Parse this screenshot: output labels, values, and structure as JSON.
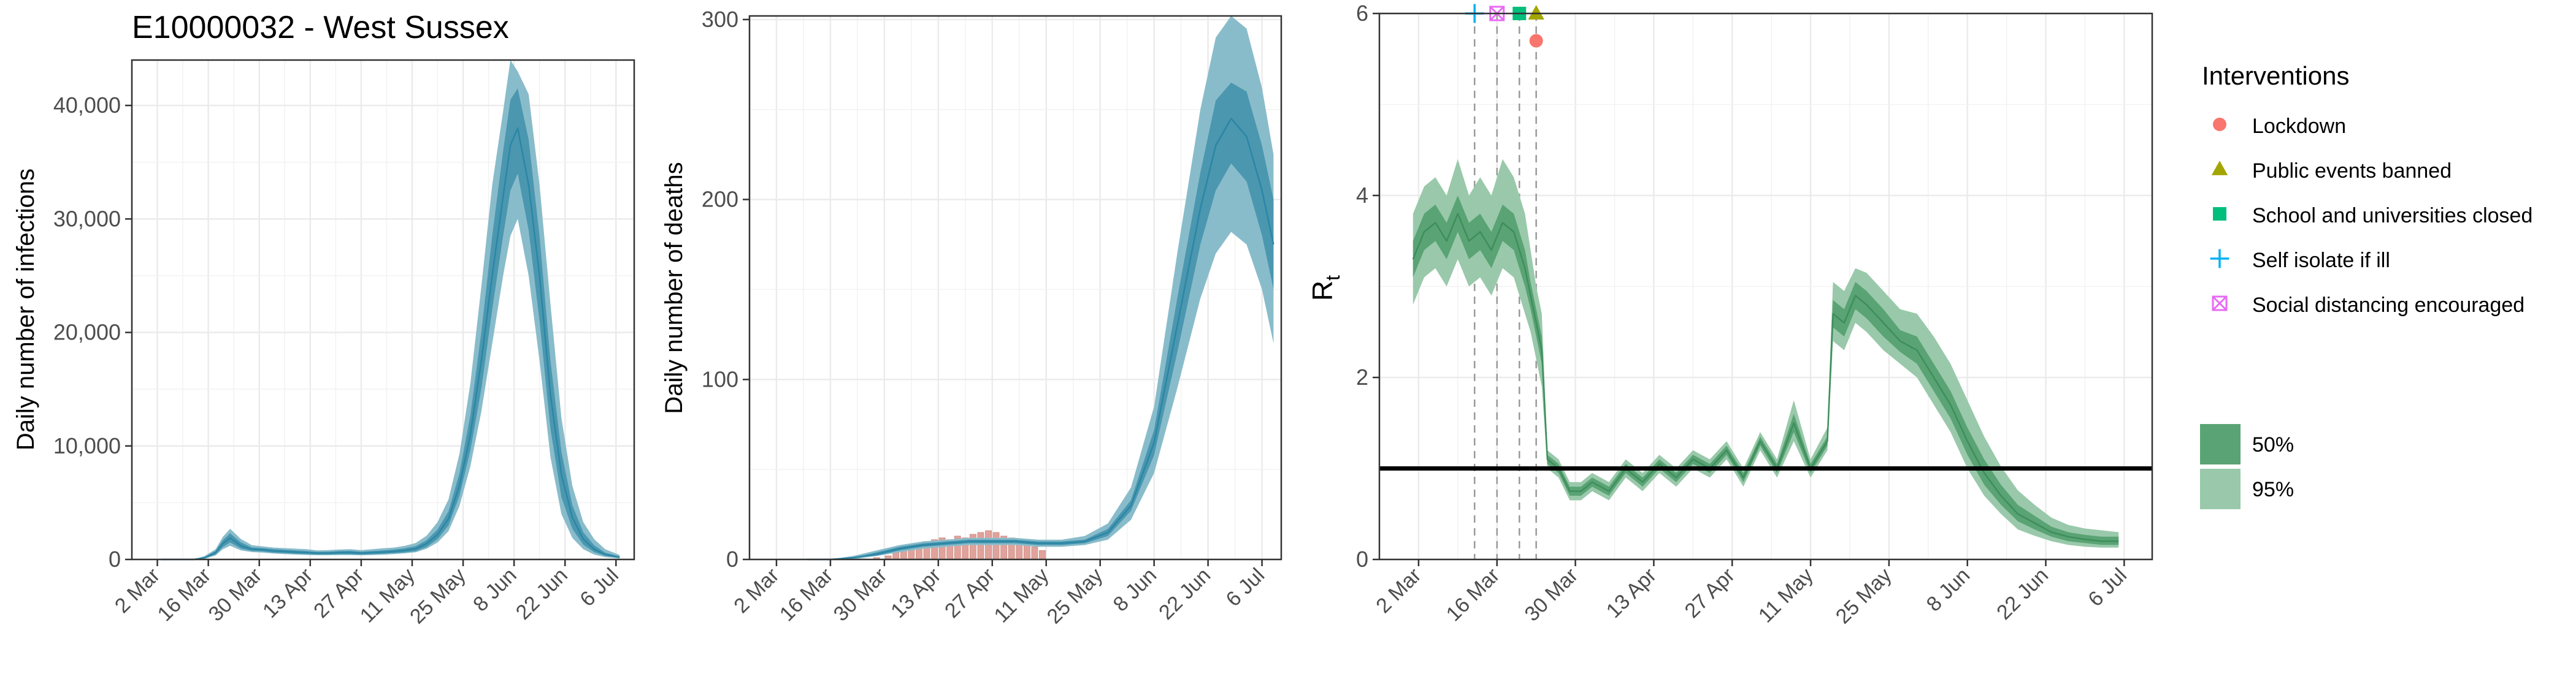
{
  "figure_title": "E10000032 - West Sussex",
  "colors": {
    "infections_ci95": "#89bccb",
    "infections_ci50": "#4b97b0",
    "infections_median": "#2b86a5",
    "deaths_ci95": "#89bccb",
    "deaths_ci50": "#4b97b0",
    "deaths_median": "#2b86a5",
    "observed_deaths": "#e0a29a",
    "rt_ci95": "#99c9aa",
    "rt_ci50": "#5aa374",
    "rt_median": "#3e8e5c",
    "reference_line": "#000000",
    "lockdown": "#f8766d",
    "public_events": "#a3a500",
    "schools": "#00bf7d",
    "self_isolate": "#00b0f6",
    "social_distancing": "#e76bf3"
  },
  "chart_data": [
    {
      "id": "infections",
      "type": "area",
      "title": "E10000032 - West Sussex",
      "ylabel": "Daily number of infections",
      "xlabel": "",
      "x_ticks": [
        "2 Mar",
        "16 Mar",
        "30 Mar",
        "13 Apr",
        "27 Apr",
        "11 May",
        "25 May",
        "8 Jun",
        "22 Jun",
        "6 Jul"
      ],
      "y_ticks": [
        "0",
        "10,000",
        "20,000",
        "30,000",
        "40,000"
      ],
      "ylim": [
        0,
        44000
      ],
      "xlim": [
        "2020-02-24",
        "2020-07-11"
      ],
      "grid": true,
      "series": [
        {
          "x": [
            "2020-03-03",
            "2020-03-06",
            "2020-03-09",
            "2020-03-12",
            "2020-03-15",
            "2020-03-18",
            "2020-03-20",
            "2020-03-22",
            "2020-03-25",
            "2020-03-28",
            "2020-03-31",
            "2020-04-03",
            "2020-04-06",
            "2020-04-09",
            "2020-04-12",
            "2020-04-15",
            "2020-04-18",
            "2020-04-21",
            "2020-04-24",
            "2020-04-27",
            "2020-04-30",
            "2020-05-03",
            "2020-05-06",
            "2020-05-09",
            "2020-05-12",
            "2020-05-15",
            "2020-05-18",
            "2020-05-21",
            "2020-05-24",
            "2020-05-27",
            "2020-05-30",
            "2020-06-02",
            "2020-06-05",
            "2020-06-07",
            "2020-06-09",
            "2020-06-12",
            "2020-06-15",
            "2020-06-18",
            "2020-06-21",
            "2020-06-24",
            "2020-06-27",
            "2020-06-30",
            "2020-07-03",
            "2020-07-07"
          ],
          "median": [
            0,
            0,
            0,
            0,
            150,
            600,
            1400,
            1900,
            1200,
            900,
            850,
            750,
            700,
            650,
            600,
            550,
            550,
            600,
            600,
            550,
            600,
            650,
            700,
            800,
            950,
            1400,
            2200,
            3600,
            6500,
            11000,
            17500,
            25000,
            32000,
            36500,
            38000,
            33000,
            25000,
            14500,
            7500,
            3700,
            1800,
            900,
            450,
            200
          ],
          "ci50_low": [
            0,
            0,
            0,
            0,
            100,
            450,
            1100,
            1500,
            950,
            750,
            700,
            600,
            550,
            500,
            470,
            440,
            440,
            460,
            460,
            430,
            460,
            500,
            550,
            620,
            730,
            1100,
            1800,
            3000,
            5600,
            9600,
            15000,
            22000,
            28500,
            32500,
            34000,
            29000,
            21000,
            11500,
            5500,
            2700,
            1300,
            650,
            320,
            130
          ],
          "ci50_high": [
            0,
            0,
            0,
            0,
            220,
            750,
            1700,
            2300,
            1500,
            1050,
            1000,
            900,
            850,
            800,
            740,
            670,
            680,
            740,
            760,
            680,
            740,
            800,
            870,
            990,
            1170,
            1700,
            2650,
            4250,
            7600,
            12700,
            20000,
            28500,
            36000,
            40500,
            41500,
            37000,
            28500,
            17500,
            9500,
            4800,
            2400,
            1250,
            600,
            260
          ],
          "ci95_low": [
            0,
            0,
            0,
            0,
            60,
            350,
            900,
            1200,
            800,
            650,
            600,
            520,
            470,
            430,
            400,
            370,
            370,
            390,
            390,
            360,
            390,
            420,
            470,
            540,
            630,
            950,
            1500,
            2500,
            4700,
            8200,
            13000,
            19000,
            25000,
            28500,
            30000,
            25000,
            17500,
            9000,
            4000,
            1900,
            900,
            430,
            200,
            80
          ],
          "ci95_high": [
            0,
            0,
            0,
            0,
            300,
            900,
            2000,
            2700,
            1800,
            1250,
            1150,
            1050,
            1000,
            950,
            900,
            800,
            820,
            880,
            900,
            820,
            900,
            980,
            1050,
            1200,
            1450,
            2100,
            3300,
            5300,
            9300,
            15500,
            24000,
            33000,
            39500,
            44000,
            43000,
            41000,
            33000,
            22500,
            12500,
            6500,
            3300,
            1800,
            900,
            400
          ]
        }
      ]
    },
    {
      "id": "deaths",
      "type": "area",
      "ylabel": "Daily number of deaths",
      "xlabel": "",
      "x_ticks": [
        "2 Mar",
        "16 Mar",
        "30 Mar",
        "13 Apr",
        "27 Apr",
        "11 May",
        "25 May",
        "8 Jun",
        "22 Jun",
        "6 Jul"
      ],
      "y_ticks": [
        "0",
        "100",
        "200",
        "300"
      ],
      "ylim": [
        0,
        302
      ],
      "xlim": [
        "2020-02-24",
        "2020-07-11"
      ],
      "grid": true,
      "observed": {
        "x": [
          "2020-03-28",
          "2020-03-31",
          "2020-04-02",
          "2020-04-04",
          "2020-04-06",
          "2020-04-08",
          "2020-04-10",
          "2020-04-12",
          "2020-04-14",
          "2020-04-16",
          "2020-04-18",
          "2020-04-20",
          "2020-04-22",
          "2020-04-24",
          "2020-04-26",
          "2020-04-28",
          "2020-04-30",
          "2020-05-02",
          "2020-05-04",
          "2020-05-06",
          "2020-05-08",
          "2020-05-10"
        ],
        "values": [
          1,
          2,
          4,
          6,
          8,
          9,
          10,
          11,
          12,
          11,
          13,
          12,
          14,
          15,
          16,
          15,
          13,
          12,
          10,
          9,
          7,
          5
        ]
      },
      "series": [
        {
          "x": [
            "2020-03-10",
            "2020-03-16",
            "2020-03-22",
            "2020-03-28",
            "2020-04-03",
            "2020-04-09",
            "2020-04-15",
            "2020-04-21",
            "2020-04-27",
            "2020-05-03",
            "2020-05-09",
            "2020-05-15",
            "2020-05-21",
            "2020-05-27",
            "2020-06-02",
            "2020-06-08",
            "2020-06-14",
            "2020-06-20",
            "2020-06-24",
            "2020-06-28",
            "2020-07-02",
            "2020-07-06",
            "2020-07-09"
          ],
          "median": [
            0,
            0,
            1,
            3,
            6,
            8,
            9,
            10,
            10,
            10,
            9,
            9,
            10,
            15,
            30,
            65,
            130,
            195,
            230,
            245,
            235,
            205,
            175
          ],
          "ci50_low": [
            0,
            0,
            1,
            2,
            5,
            7,
            8,
            9,
            9,
            9,
            8,
            8,
            9,
            13,
            27,
            58,
            115,
            175,
            205,
            220,
            210,
            180,
            150
          ],
          "ci50_high": [
            0,
            0,
            1,
            4,
            7,
            9,
            10,
            11,
            11,
            11,
            10,
            10,
            11,
            17,
            33,
            72,
            145,
            215,
            255,
            265,
            260,
            230,
            200
          ],
          "ci95_low": [
            0,
            0,
            0,
            2,
            4,
            6,
            7,
            8,
            8,
            8,
            7,
            7,
            8,
            11,
            22,
            48,
            95,
            145,
            170,
            182,
            175,
            150,
            120
          ],
          "ci95_high": [
            0,
            0,
            2,
            5,
            8,
            10,
            11,
            12,
            12,
            12,
            11,
            11,
            13,
            20,
            40,
            85,
            170,
            250,
            290,
            302,
            295,
            262,
            225
          ]
        }
      ]
    },
    {
      "id": "rt",
      "type": "area",
      "ylabel": "R",
      "ylabel_subscript": "t",
      "xlabel": "",
      "x_ticks": [
        "2 Mar",
        "16 Mar",
        "30 Mar",
        "13 Apr",
        "27 Apr",
        "11 May",
        "25 May",
        "8 Jun",
        "22 Jun",
        "6 Jul"
      ],
      "y_ticks": [
        "0",
        "2",
        "4",
        "6"
      ],
      "ylim": [
        0,
        6
      ],
      "xlim": [
        "2020-02-24",
        "2020-07-11"
      ],
      "grid": true,
      "reference_line": 1,
      "series": [
        {
          "x": [
            "2020-03-01",
            "2020-03-03",
            "2020-03-05",
            "2020-03-07",
            "2020-03-09",
            "2020-03-11",
            "2020-03-13",
            "2020-03-15",
            "2020-03-17",
            "2020-03-19",
            "2020-03-21",
            "2020-03-22",
            "2020-03-23",
            "2020-03-24",
            "2020-03-25",
            "2020-03-27",
            "2020-03-29",
            "2020-03-31",
            "2020-04-02",
            "2020-04-05",
            "2020-04-08",
            "2020-04-11",
            "2020-04-14",
            "2020-04-17",
            "2020-04-20",
            "2020-04-23",
            "2020-04-26",
            "2020-04-29",
            "2020-05-02",
            "2020-05-05",
            "2020-05-08",
            "2020-05-11",
            "2020-05-14",
            "2020-05-15",
            "2020-05-17",
            "2020-05-19",
            "2020-05-21",
            "2020-05-24",
            "2020-05-27",
            "2020-05-30",
            "2020-06-02",
            "2020-06-05",
            "2020-06-08",
            "2020-06-11",
            "2020-06-14",
            "2020-06-17",
            "2020-06-20",
            "2020-06-23",
            "2020-06-26",
            "2020-06-29",
            "2020-07-02",
            "2020-07-05"
          ],
          "median": [
            3.3,
            3.6,
            3.7,
            3.5,
            3.8,
            3.5,
            3.6,
            3.4,
            3.7,
            3.6,
            3.2,
            2.9,
            2.6,
            2.3,
            1.1,
            1.0,
            0.75,
            0.75,
            0.85,
            0.75,
            1.0,
            0.85,
            1.05,
            0.9,
            1.1,
            1.0,
            1.2,
            0.9,
            1.3,
            1.0,
            1.5,
            1.0,
            1.3,
            2.7,
            2.6,
            2.9,
            2.8,
            2.6,
            2.4,
            2.3,
            2.0,
            1.7,
            1.3,
            0.95,
            0.7,
            0.5,
            0.4,
            0.3,
            0.25,
            0.22,
            0.2,
            0.2
          ],
          "ci50_low": [
            3.1,
            3.4,
            3.5,
            3.3,
            3.6,
            3.3,
            3.4,
            3.2,
            3.5,
            3.4,
            3.0,
            2.75,
            2.45,
            2.15,
            1.05,
            0.95,
            0.7,
            0.7,
            0.8,
            0.7,
            0.95,
            0.8,
            1.0,
            0.85,
            1.05,
            0.95,
            1.15,
            0.85,
            1.25,
            0.95,
            1.4,
            0.95,
            1.25,
            2.55,
            2.45,
            2.75,
            2.65,
            2.45,
            2.28,
            2.15,
            1.85,
            1.55,
            1.15,
            0.82,
            0.6,
            0.42,
            0.33,
            0.25,
            0.2,
            0.18,
            0.16,
            0.16
          ],
          "ci50_high": [
            3.5,
            3.8,
            3.9,
            3.7,
            4.0,
            3.7,
            3.8,
            3.6,
            3.9,
            3.8,
            3.4,
            3.05,
            2.75,
            2.45,
            1.15,
            1.05,
            0.8,
            0.8,
            0.9,
            0.8,
            1.05,
            0.9,
            1.1,
            0.95,
            1.15,
            1.05,
            1.25,
            0.95,
            1.35,
            1.05,
            1.6,
            1.05,
            1.35,
            2.85,
            2.75,
            3.05,
            2.95,
            2.75,
            2.52,
            2.45,
            2.15,
            1.85,
            1.45,
            1.1,
            0.82,
            0.6,
            0.48,
            0.36,
            0.3,
            0.27,
            0.25,
            0.25
          ],
          "ci95_low": [
            2.8,
            3.1,
            3.2,
            3.0,
            3.3,
            3.0,
            3.1,
            2.9,
            3.2,
            3.1,
            2.7,
            2.5,
            2.2,
            1.9,
            1.0,
            0.9,
            0.65,
            0.65,
            0.75,
            0.65,
            0.9,
            0.75,
            0.95,
            0.8,
            1.0,
            0.9,
            1.1,
            0.8,
            1.2,
            0.9,
            1.3,
            0.9,
            1.2,
            2.4,
            2.3,
            2.6,
            2.5,
            2.3,
            2.15,
            2.0,
            1.7,
            1.4,
            1.0,
            0.7,
            0.5,
            0.33,
            0.26,
            0.2,
            0.16,
            0.14,
            0.13,
            0.13
          ],
          "ci95_high": [
            3.8,
            4.1,
            4.2,
            4.0,
            4.4,
            4.0,
            4.2,
            4.0,
            4.4,
            4.2,
            3.8,
            3.4,
            3.0,
            2.7,
            1.2,
            1.1,
            0.85,
            0.85,
            0.95,
            0.85,
            1.1,
            0.95,
            1.15,
            1.0,
            1.2,
            1.1,
            1.3,
            1.0,
            1.4,
            1.1,
            1.75,
            1.1,
            1.45,
            3.05,
            2.95,
            3.2,
            3.15,
            2.95,
            2.75,
            2.7,
            2.45,
            2.15,
            1.75,
            1.35,
            1.02,
            0.76,
            0.6,
            0.46,
            0.38,
            0.34,
            0.32,
            0.3
          ]
        }
      ],
      "interventions": [
        {
          "name": "Self isolate if ill",
          "date": "2020-03-12",
          "value": 6.0,
          "shape": "plus",
          "color_key": "self_isolate"
        },
        {
          "name": "Social distancing encouraged",
          "date": "2020-03-16",
          "value": 6.0,
          "shape": "boxx",
          "color_key": "social_distancing"
        },
        {
          "name": "School and universities closed",
          "date": "2020-03-20",
          "value": 6.0,
          "shape": "square",
          "color_key": "schools"
        },
        {
          "name": "Public events banned",
          "date": "2020-03-23",
          "value": 6.0,
          "shape": "triangle",
          "color_key": "public_events"
        },
        {
          "name": "Lockdown",
          "date": "2020-03-23",
          "value": 5.7,
          "shape": "circle",
          "color_key": "lockdown"
        }
      ]
    }
  ],
  "legend": {
    "title": "Interventions",
    "items": [
      {
        "label": "Lockdown",
        "shape": "circle",
        "color_key": "lockdown"
      },
      {
        "label": "Public events banned",
        "shape": "triangle",
        "color_key": "public_events"
      },
      {
        "label": "School and universities closed",
        "shape": "square",
        "color_key": "schools"
      },
      {
        "label": "Self isolate if ill",
        "shape": "plus",
        "color_key": "self_isolate"
      },
      {
        "label": "Social distancing encouraged",
        "shape": "boxx",
        "color_key": "social_distancing"
      }
    ],
    "intervals": [
      {
        "label": "50%",
        "color_key": "rt_ci50"
      },
      {
        "label": "95%",
        "color_key": "rt_ci95"
      }
    ]
  }
}
